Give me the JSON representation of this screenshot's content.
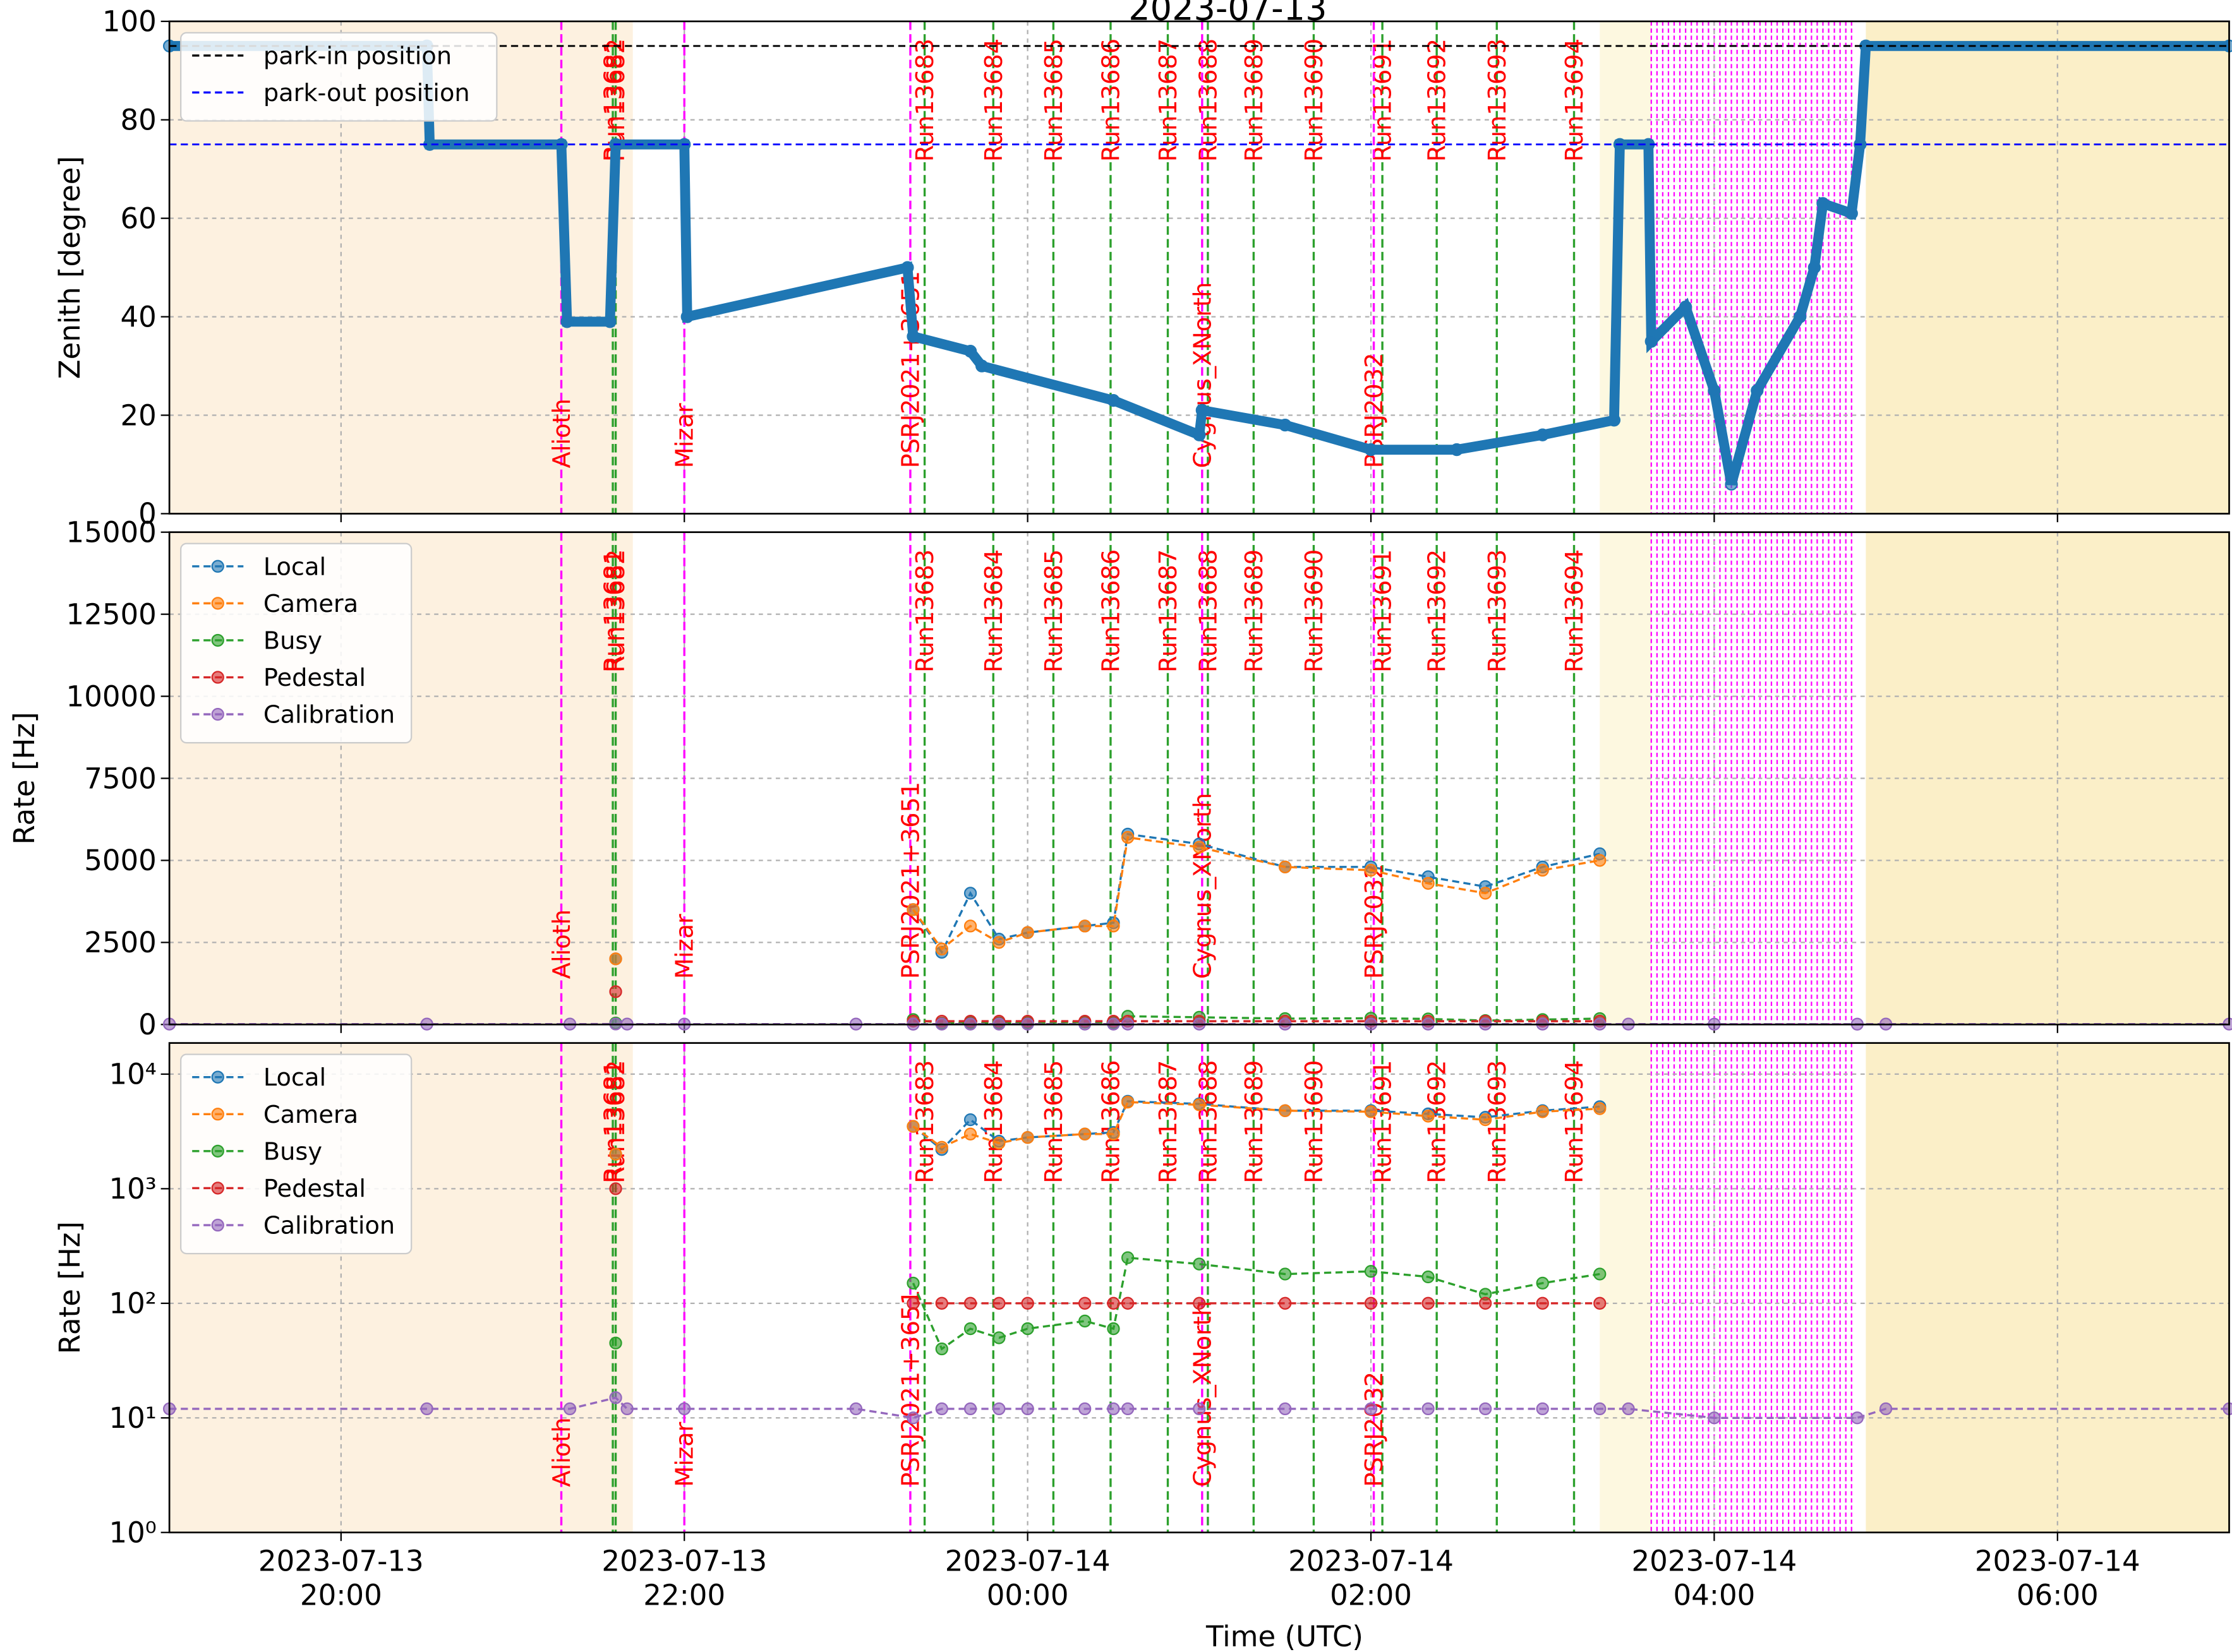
{
  "markers": {
    "runs": [
      {
        "label": "Run13681",
        "x": "2023-07-13 21:35"
      },
      {
        "label": "Run13682",
        "x": "2023-07-13 21:36"
      },
      {
        "label": "Run13683",
        "x": "2023-07-13 23:24"
      },
      {
        "label": "Run13684",
        "x": "2023-07-13 23:48"
      },
      {
        "label": "Run13685",
        "x": "2023-07-14 00:09"
      },
      {
        "label": "Run13686",
        "x": "2023-07-14 00:29"
      },
      {
        "label": "Run13687",
        "x": "2023-07-14 00:49"
      },
      {
        "label": "Run13688",
        "x": "2023-07-14 01:03"
      },
      {
        "label": "Run13689",
        "x": "2023-07-14 01:19"
      },
      {
        "label": "Run13690",
        "x": "2023-07-14 01:40"
      },
      {
        "label": "Run13691",
        "x": "2023-07-14 02:04"
      },
      {
        "label": "Run13692",
        "x": "2023-07-14 02:23"
      },
      {
        "label": "Run13693",
        "x": "2023-07-14 02:44"
      },
      {
        "label": "Run13694",
        "x": "2023-07-14 03:11"
      }
    ],
    "sources": [
      {
        "label": "Alioth",
        "x": "2023-07-13 21:17"
      },
      {
        "label": "Mizar",
        "x": "2023-07-13 22:00"
      },
      {
        "label": "PSRJ2021+3651",
        "x": "2023-07-13 23:19"
      },
      {
        "label": "Cygnus_XNorth",
        "x": "2023-07-14 01:01"
      },
      {
        "label": "PSRJ2032",
        "x": "2023-07-14 02:01"
      }
    ],
    "dense_source_region": {
      "start": "2023-07-14 03:38",
      "end": "2023-07-14 04:48",
      "color": "#ff00ff"
    },
    "shading": [
      {
        "start": "2023-07-13 19:00",
        "end": "2023-07-13 21:42",
        "color": "#fdf1e0"
      },
      {
        "start": "2023-07-14 03:20",
        "end": "2023-07-14 03:38",
        "color": "#fdf8e0"
      },
      {
        "start": "2023-07-14 04:53",
        "end": "2023-07-14 07:00",
        "color": "#fbefc8"
      }
    ]
  },
  "chart_data": [
    {
      "type": "line",
      "title": "2023-07-13",
      "ylabel": "Zenith [degree]",
      "ylim": [
        0,
        100
      ],
      "yticks": [
        0,
        20,
        40,
        60,
        80,
        100
      ],
      "grid": true,
      "legend": "upper left",
      "color": "#1f77b4",
      "hlines": [
        {
          "name": "park-in position",
          "color": "#000000",
          "value": 95
        },
        {
          "name": "park-out position",
          "color": "#0000ff",
          "value": 75
        }
      ],
      "x": [
        "2023-07-13 19:00",
        "2023-07-13 20:30",
        "2023-07-13 20:31",
        "2023-07-13 21:17",
        "2023-07-13 21:19",
        "2023-07-13 21:34",
        "2023-07-13 21:36",
        "2023-07-13 22:00",
        "2023-07-13 22:01",
        "2023-07-13 23:18",
        "2023-07-13 23:20",
        "2023-07-13 23:40",
        "2023-07-13 23:44",
        "2023-07-14 00:30",
        "2023-07-14 01:00",
        "2023-07-14 01:01",
        "2023-07-14 01:30",
        "2023-07-14 02:00",
        "2023-07-14 02:30",
        "2023-07-14 03:00",
        "2023-07-14 03:25",
        "2023-07-14 03:27",
        "2023-07-14 03:37",
        "2023-07-14 03:38",
        "2023-07-14 03:50",
        "2023-07-14 04:00",
        "2023-07-14 04:06",
        "2023-07-14 04:15",
        "2023-07-14 04:30",
        "2023-07-14 04:35",
        "2023-07-14 04:38",
        "2023-07-14 04:48",
        "2023-07-14 04:51",
        "2023-07-14 04:53",
        "2023-07-14 07:00"
      ],
      "values": [
        95,
        95,
        75,
        75,
        39,
        39,
        75,
        75,
        40,
        50,
        36,
        33,
        30,
        23,
        16,
        21,
        18,
        13,
        13,
        16,
        19,
        75,
        75,
        35,
        42,
        25,
        6,
        25,
        40,
        50,
        63,
        61,
        75,
        95,
        95
      ]
    },
    {
      "type": "line",
      "ylabel": "Rate [Hz]",
      "ylim": [
        0,
        15000
      ],
      "yticks": [
        0,
        2500,
        5000,
        7500,
        10000,
        12500,
        15000
      ],
      "grid": true,
      "legend": "upper left",
      "log": false,
      "x": [
        "2023-07-13 19:00",
        "2023-07-13 20:30",
        "2023-07-13 21:20",
        "2023-07-13 21:36",
        "2023-07-13 21:40",
        "2023-07-13 22:00",
        "2023-07-13 23:00",
        "2023-07-13 23:20",
        "2023-07-13 23:30",
        "2023-07-13 23:40",
        "2023-07-13 23:50",
        "2023-07-14 00:00",
        "2023-07-14 00:20",
        "2023-07-14 00:30",
        "2023-07-14 00:35",
        "2023-07-14 01:00",
        "2023-07-14 01:30",
        "2023-07-14 02:00",
        "2023-07-14 02:20",
        "2023-07-14 02:40",
        "2023-07-14 03:00",
        "2023-07-14 03:20",
        "2023-07-14 03:30",
        "2023-07-14 04:00",
        "2023-07-14 04:50",
        "2023-07-14 05:00",
        "2023-07-14 07:00"
      ],
      "series": [
        {
          "name": "Local",
          "color": "#1f77b4",
          "values": [
            null,
            null,
            null,
            2000,
            null,
            null,
            null,
            3500,
            2200,
            4000,
            2600,
            2800,
            3000,
            3100,
            5800,
            5500,
            4800,
            4800,
            4500,
            4200,
            4800,
            5200,
            null,
            null,
            null,
            null,
            null
          ]
        },
        {
          "name": "Camera",
          "color": "#ff7f0e",
          "values": [
            null,
            null,
            null,
            2000,
            null,
            null,
            null,
            3500,
            2300,
            3000,
            2500,
            2800,
            3000,
            3000,
            5700,
            5400,
            4800,
            4700,
            4300,
            4000,
            4700,
            5000,
            null,
            null,
            null,
            null,
            null
          ]
        },
        {
          "name": "Busy",
          "color": "#2ca02c",
          "values": [
            null,
            null,
            null,
            45,
            null,
            null,
            null,
            150,
            40,
            60,
            50,
            60,
            70,
            60,
            250,
            220,
            180,
            190,
            170,
            120,
            150,
            180,
            null,
            null,
            null,
            null,
            null
          ]
        },
        {
          "name": "Pedestal",
          "color": "#d62728",
          "values": [
            null,
            null,
            null,
            1000,
            null,
            null,
            null,
            100,
            100,
            100,
            100,
            100,
            100,
            100,
            100,
            100,
            100,
            100,
            100,
            100,
            100,
            100,
            null,
            null,
            null,
            null,
            null
          ]
        },
        {
          "name": "Calibration",
          "color": "#9467bd",
          "values": [
            12,
            12,
            12,
            15,
            12,
            12,
            12,
            10,
            12,
            12,
            12,
            12,
            12,
            12,
            12,
            12,
            12,
            12,
            12,
            12,
            12,
            12,
            12,
            10,
            10,
            12,
            12
          ]
        }
      ]
    },
    {
      "type": "line",
      "ylabel": "Rate [Hz]",
      "xlabel": "Time (UTC)",
      "log": true,
      "ylim": [
        1,
        18700
      ],
      "grid": true,
      "legend": "upper left",
      "yticks": [
        {
          "value": 1,
          "label": "10⁰"
        },
        {
          "value": 10,
          "label": "10¹"
        },
        {
          "value": 100,
          "label": "10²"
        },
        {
          "value": 1000,
          "label": "10³"
        },
        {
          "value": 10000,
          "label": "10⁴"
        }
      ],
      "xlim": [
        "2023-07-13 19:00",
        "2023-07-14 07:00"
      ],
      "xticks": [
        {
          "value": "2023-07-13 20:00",
          "label": "2023-07-13 20:00"
        },
        {
          "value": "2023-07-13 22:00",
          "label": "2023-07-13 22:00"
        },
        {
          "value": "2023-07-14 00:00",
          "label": "2023-07-14 00:00"
        },
        {
          "value": "2023-07-14 02:00",
          "label": "2023-07-14 02:00"
        },
        {
          "value": "2023-07-14 04:00",
          "label": "2023-07-14 04:00"
        },
        {
          "value": "2023-07-14 06:00",
          "label": "2023-07-14 06:00"
        }
      ],
      "x": [
        "2023-07-13 19:00",
        "2023-07-13 20:30",
        "2023-07-13 21:20",
        "2023-07-13 21:36",
        "2023-07-13 21:40",
        "2023-07-13 22:00",
        "2023-07-13 23:00",
        "2023-07-13 23:20",
        "2023-07-13 23:30",
        "2023-07-13 23:40",
        "2023-07-13 23:50",
        "2023-07-14 00:00",
        "2023-07-14 00:20",
        "2023-07-14 00:30",
        "2023-07-14 00:35",
        "2023-07-14 01:00",
        "2023-07-14 01:30",
        "2023-07-14 02:00",
        "2023-07-14 02:20",
        "2023-07-14 02:40",
        "2023-07-14 03:00",
        "2023-07-14 03:20",
        "2023-07-14 03:30",
        "2023-07-14 04:00",
        "2023-07-14 04:50",
        "2023-07-14 05:00",
        "2023-07-14 07:00"
      ],
      "series": [
        {
          "name": "Local",
          "color": "#1f77b4",
          "values": [
            null,
            null,
            null,
            2000,
            null,
            null,
            null,
            3500,
            2200,
            4000,
            2600,
            2800,
            3000,
            3100,
            5800,
            5500,
            4800,
            4800,
            4500,
            4200,
            4800,
            5200,
            null,
            null,
            null,
            null,
            null
          ]
        },
        {
          "name": "Camera",
          "color": "#ff7f0e",
          "values": [
            null,
            null,
            null,
            2000,
            null,
            null,
            null,
            3500,
            2300,
            3000,
            2500,
            2800,
            3000,
            3000,
            5700,
            5400,
            4800,
            4700,
            4300,
            4000,
            4700,
            5000,
            null,
            null,
            null,
            null,
            null
          ]
        },
        {
          "name": "Busy",
          "color": "#2ca02c",
          "values": [
            null,
            null,
            null,
            45,
            null,
            null,
            null,
            150,
            40,
            60,
            50,
            60,
            70,
            60,
            250,
            220,
            180,
            190,
            170,
            120,
            150,
            180,
            null,
            null,
            null,
            null,
            null
          ]
        },
        {
          "name": "Pedestal",
          "color": "#d62728",
          "values": [
            null,
            null,
            null,
            1000,
            null,
            null,
            null,
            100,
            100,
            100,
            100,
            100,
            100,
            100,
            100,
            100,
            100,
            100,
            100,
            100,
            100,
            100,
            null,
            null,
            null,
            null,
            null
          ]
        },
        {
          "name": "Calibration",
          "color": "#9467bd",
          "values": [
            12,
            12,
            12,
            15,
            12,
            12,
            12,
            10,
            12,
            12,
            12,
            12,
            12,
            12,
            12,
            12,
            12,
            12,
            12,
            12,
            12,
            12,
            12,
            10,
            10,
            12,
            12
          ]
        }
      ]
    }
  ]
}
